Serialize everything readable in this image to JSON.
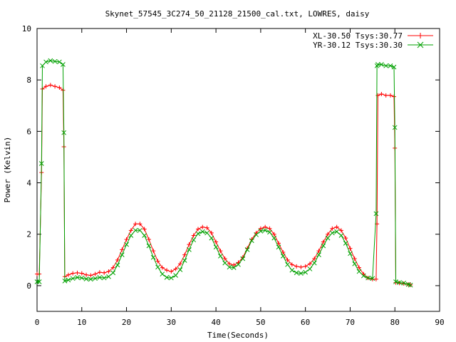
{
  "chart_data": {
    "type": "line",
    "title": "Skynet_57545_3C274_50_21128_21500_cal.txt, LOWRES, daisy",
    "xlabel": "Time(Seconds)",
    "ylabel": "Power (Kelvin)",
    "xlim": [
      0,
      90
    ],
    "ylim": [
      -1,
      10
    ],
    "xticks": [
      0,
      10,
      20,
      30,
      40,
      50,
      60,
      70,
      80,
      90
    ],
    "yticks": [
      0,
      2,
      4,
      6,
      8,
      10
    ],
    "grid": false,
    "legend_position": "top-right",
    "series": [
      {
        "name": "XL-30.50 Tsys:30.77",
        "color": "#ff0000",
        "marker": "plus",
        "x": [
          0,
          0.5,
          1.0,
          1.2,
          2,
          3,
          4,
          5,
          5.8,
          6.0,
          6.2,
          7,
          8,
          9,
          10,
          11,
          12,
          13,
          14,
          15,
          16,
          17,
          18,
          19,
          20,
          21,
          22,
          23,
          24,
          25,
          26,
          27,
          28,
          29,
          30,
          31,
          32,
          33,
          34,
          35,
          36,
          37,
          38,
          39,
          40,
          41,
          42,
          43,
          44,
          45,
          46,
          47,
          48,
          49,
          50,
          51,
          52,
          53,
          54,
          55,
          56,
          57,
          58,
          59,
          60,
          61,
          62,
          63,
          64,
          65,
          66,
          67,
          68,
          69,
          70,
          71,
          72,
          73,
          74,
          75,
          75.8,
          76.0,
          76.2,
          77,
          78,
          79,
          79.8,
          80.0,
          80.2,
          81,
          82,
          83,
          83.5
        ],
        "y": [
          0.45,
          0.45,
          4.4,
          7.65,
          7.75,
          7.8,
          7.75,
          7.7,
          7.6,
          5.4,
          0.35,
          0.42,
          0.48,
          0.5,
          0.48,
          0.42,
          0.4,
          0.45,
          0.52,
          0.5,
          0.55,
          0.7,
          1.0,
          1.4,
          1.8,
          2.15,
          2.4,
          2.4,
          2.2,
          1.8,
          1.35,
          0.95,
          0.7,
          0.6,
          0.55,
          0.65,
          0.85,
          1.2,
          1.6,
          1.95,
          2.2,
          2.28,
          2.25,
          2.05,
          1.7,
          1.35,
          1.05,
          0.85,
          0.8,
          0.9,
          1.1,
          1.45,
          1.8,
          2.05,
          2.22,
          2.28,
          2.22,
          2.0,
          1.65,
          1.3,
          1.0,
          0.82,
          0.75,
          0.72,
          0.75,
          0.85,
          1.05,
          1.35,
          1.7,
          2.0,
          2.22,
          2.28,
          2.15,
          1.85,
          1.45,
          1.05,
          0.7,
          0.45,
          0.3,
          0.25,
          0.25,
          2.4,
          7.4,
          7.45,
          7.4,
          7.4,
          7.35,
          5.35,
          0.12,
          0.1,
          0.08,
          0.05,
          0.03
        ]
      },
      {
        "name": "YR-30.12 Tsys:30.30",
        "color": "#00a000",
        "marker": "cross",
        "x": [
          0,
          0.5,
          1.0,
          1.2,
          2,
          3,
          4,
          5,
          5.8,
          6.0,
          6.2,
          7,
          8,
          9,
          10,
          11,
          12,
          13,
          14,
          15,
          16,
          17,
          18,
          19,
          20,
          21,
          22,
          23,
          24,
          25,
          26,
          27,
          28,
          29,
          30,
          31,
          32,
          33,
          34,
          35,
          36,
          37,
          38,
          39,
          40,
          41,
          42,
          43,
          44,
          45,
          46,
          47,
          48,
          49,
          50,
          51,
          52,
          53,
          54,
          55,
          56,
          57,
          58,
          59,
          60,
          61,
          62,
          63,
          64,
          65,
          66,
          67,
          68,
          69,
          70,
          71,
          72,
          73,
          74,
          75,
          75.8,
          76.0,
          76.2,
          77,
          78,
          79,
          79.8,
          80.0,
          80.2,
          81,
          82,
          83,
          83.5
        ],
        "y": [
          0.15,
          0.15,
          4.75,
          8.55,
          8.7,
          8.75,
          8.72,
          8.7,
          8.6,
          5.95,
          0.18,
          0.22,
          0.28,
          0.32,
          0.3,
          0.26,
          0.25,
          0.28,
          0.32,
          0.3,
          0.35,
          0.5,
          0.8,
          1.2,
          1.6,
          1.95,
          2.15,
          2.15,
          1.95,
          1.55,
          1.1,
          0.72,
          0.45,
          0.32,
          0.3,
          0.4,
          0.62,
          0.98,
          1.4,
          1.78,
          2.02,
          2.1,
          2.05,
          1.85,
          1.5,
          1.15,
          0.88,
          0.72,
          0.7,
          0.82,
          1.05,
          1.4,
          1.75,
          1.98,
          2.12,
          2.15,
          2.08,
          1.85,
          1.5,
          1.15,
          0.82,
          0.6,
          0.5,
          0.48,
          0.52,
          0.65,
          0.88,
          1.2,
          1.55,
          1.85,
          2.05,
          2.1,
          1.95,
          1.65,
          1.25,
          0.85,
          0.55,
          0.38,
          0.3,
          0.28,
          2.8,
          8.55,
          8.6,
          8.6,
          8.55,
          8.55,
          8.5,
          6.15,
          0.15,
          0.12,
          0.1,
          0.05,
          0.02
        ]
      }
    ]
  }
}
